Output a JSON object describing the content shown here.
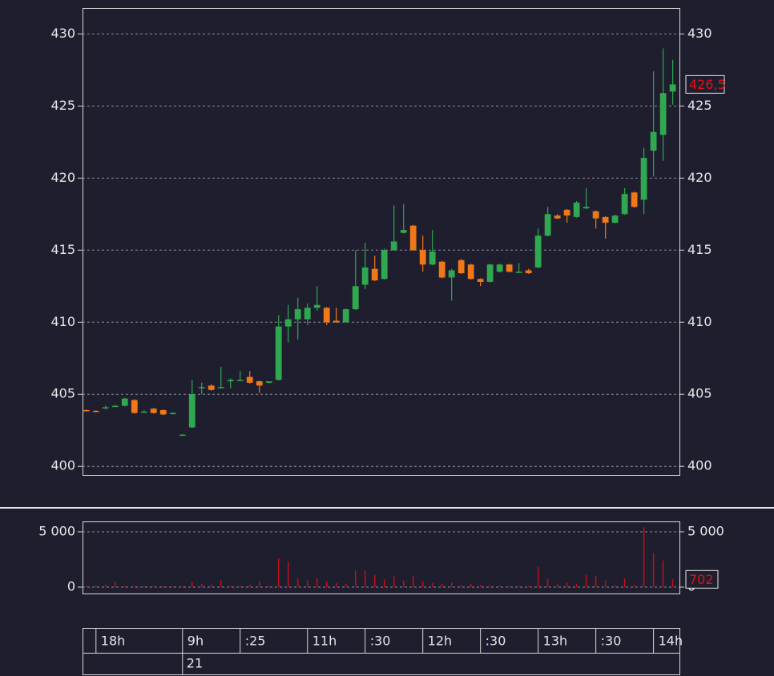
{
  "chart_data": [
    {
      "type": "candlestick",
      "open": [
        403.9,
        403.85,
        404.05,
        404.2,
        404.2,
        404.6,
        403.8,
        404.0,
        403.9,
        403.7,
        402.2,
        402.7,
        405.5,
        405.6,
        405.45,
        405.9,
        406.0,
        406.2,
        405.9,
        405.8,
        406.0,
        409.7,
        410.2,
        410.2,
        411.0,
        411.0,
        410.1,
        410.0,
        410.9,
        412.6,
        413.7,
        413.0,
        415.0,
        416.2,
        416.7,
        415.0,
        414.0,
        414.2,
        413.1,
        414.3,
        414.0,
        413.0,
        412.8,
        413.5,
        414.0,
        413.5,
        413.6,
        413.8,
        416.0,
        417.4,
        417.8,
        417.3,
        417.9,
        417.7,
        417.3,
        416.9,
        417.5,
        419.0,
        418.5,
        421.9,
        423.0,
        426.0
      ],
      "high": [
        403.95,
        403.9,
        404.2,
        404.25,
        404.75,
        404.65,
        403.9,
        404.05,
        403.95,
        403.75,
        402.25,
        406.0,
        405.8,
        405.7,
        406.9,
        406.1,
        406.6,
        406.6,
        405.95,
        405.9,
        410.5,
        411.2,
        411.7,
        411.3,
        412.5,
        411.05,
        411.0,
        410.95,
        415.0,
        415.5,
        414.6,
        415.1,
        418.1,
        418.2,
        416.75,
        416.0,
        416.4,
        414.25,
        413.7,
        414.4,
        414.05,
        413.05,
        414.05,
        414.05,
        414.05,
        414.1,
        413.7,
        416.5,
        418.0,
        417.5,
        417.85,
        418.4,
        419.3,
        417.75,
        417.35,
        417.45,
        419.3,
        419.05,
        422.1,
        427.4,
        429.0,
        428.2
      ],
      "low": [
        403.85,
        403.75,
        403.95,
        404.15,
        404.15,
        403.65,
        403.75,
        403.65,
        403.55,
        403.65,
        402.15,
        402.65,
        405.0,
        405.25,
        405.4,
        405.4,
        405.95,
        405.75,
        405.1,
        405.75,
        405.95,
        408.6,
        408.8,
        409.8,
        410.8,
        409.8,
        409.95,
        409.95,
        410.85,
        412.3,
        412.85,
        412.95,
        414.95,
        416.15,
        414.95,
        413.5,
        413.95,
        413.05,
        411.5,
        413.35,
        412.95,
        412.5,
        412.75,
        413.45,
        413.45,
        413.45,
        413.35,
        413.75,
        415.95,
        417.15,
        416.9,
        417.25,
        417.85,
        416.5,
        415.8,
        416.85,
        417.45,
        417.95,
        417.5,
        420.1,
        421.2,
        425.1
      ],
      "close": [
        403.85,
        403.8,
        404.1,
        404.2,
        404.7,
        403.7,
        403.8,
        403.7,
        403.6,
        403.7,
        402.2,
        405.0,
        405.5,
        405.3,
        405.5,
        406.0,
        406.0,
        405.8,
        405.6,
        405.9,
        409.7,
        410.2,
        410.9,
        411.0,
        411.2,
        410.0,
        410.0,
        410.9,
        412.5,
        413.8,
        412.9,
        415.0,
        415.6,
        416.4,
        415.0,
        414.0,
        414.9,
        413.1,
        413.6,
        413.4,
        413.0,
        412.8,
        414.0,
        414.0,
        413.5,
        413.5,
        413.4,
        416.0,
        417.5,
        417.2,
        417.4,
        418.3,
        418.0,
        417.2,
        416.9,
        417.4,
        418.9,
        418.0,
        421.4,
        423.2,
        425.9,
        426.5
      ],
      "up_color": "#2fa84f",
      "down_color": "#f07818",
      "last_label": "426,5",
      "ylim": [
        399.4,
        431.8
      ],
      "yticks": [
        400,
        405,
        410,
        415,
        420,
        425,
        430
      ],
      "xlim": [
        -0.4,
        61.7
      ],
      "xticks": [
        {
          "value": 1,
          "label": "18h"
        },
        {
          "value": 10,
          "label": "9h"
        },
        {
          "value": 16,
          "label": ":25"
        },
        {
          "value": 23,
          "label": "11h"
        },
        {
          "value": 29,
          "label": ":30"
        },
        {
          "value": 35,
          "label": "12h"
        },
        {
          "value": 41,
          "label": ":30"
        },
        {
          "value": 47,
          "label": "13h"
        },
        {
          "value": 53,
          "label": ":30"
        },
        {
          "value": 59,
          "label": "14h"
        }
      ],
      "date_label": "21",
      "grid": true
    },
    {
      "type": "bar",
      "values": [
        100,
        150,
        200,
        450,
        150,
        100,
        100,
        100,
        100,
        100,
        100,
        450,
        300,
        250,
        600,
        100,
        100,
        200,
        500,
        150,
        2600,
        2300,
        750,
        600,
        800,
        500,
        350,
        300,
        1500,
        1500,
        1100,
        700,
        1000,
        600,
        1000,
        500,
        350,
        300,
        400,
        200,
        300,
        200,
        100,
        150,
        100,
        100,
        100,
        1800,
        700,
        300,
        400,
        300,
        1100,
        1000,
        600,
        150,
        800,
        200,
        5400,
        3100,
        2400,
        702
      ],
      "color": "#c0101a",
      "ylim": [
        -580,
        5940
      ],
      "yticks": [
        0,
        {
          "value": 5000,
          "label": "5 000"
        }
      ],
      "grid": true
    }
  ]
}
